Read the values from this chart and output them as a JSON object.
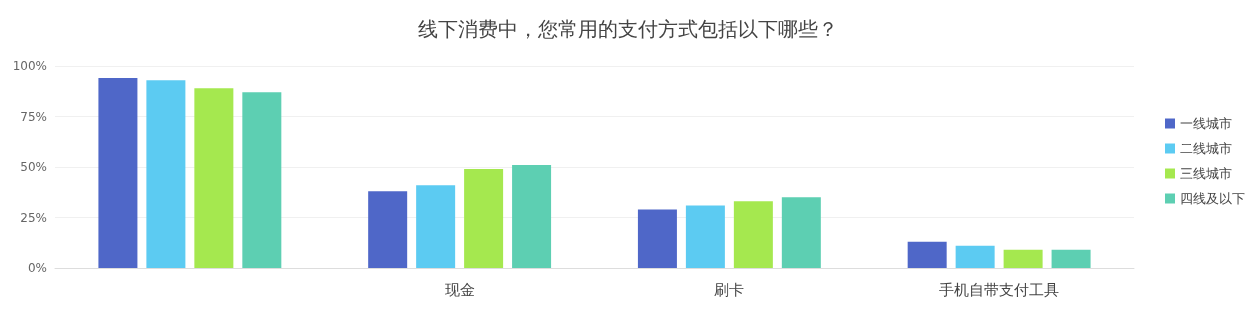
{
  "chart_data": {
    "type": "bar",
    "title": "线下消费中，您常用的支付方式包括以下哪些？",
    "categories": [
      null,
      "现金",
      "刷卡",
      "手机自带支付工具"
    ],
    "series": [
      {
        "name": "一线城市",
        "color": "#4f67c8",
        "values": [
          94,
          38,
          29,
          13
        ]
      },
      {
        "name": "二线城市",
        "color": "#5ccbf2",
        "values": [
          93,
          41,
          31,
          11
        ]
      },
      {
        "name": "三线城市",
        "color": "#a5e84f",
        "values": [
          89,
          49,
          33,
          9
        ]
      },
      {
        "name": "四线及以下",
        "color": "#5dcfb2",
        "values": [
          87,
          51,
          35,
          9
        ]
      }
    ],
    "ylim": [
      0,
      100
    ],
    "yticks": [
      {
        "value": 0,
        "label": "0%"
      },
      {
        "value": 25,
        "label": "25%"
      },
      {
        "value": 50,
        "label": "50%"
      },
      {
        "value": 75,
        "label": "75%"
      },
      {
        "value": 100,
        "label": "100%"
      }
    ],
    "grid": "y",
    "legend": "right"
  }
}
